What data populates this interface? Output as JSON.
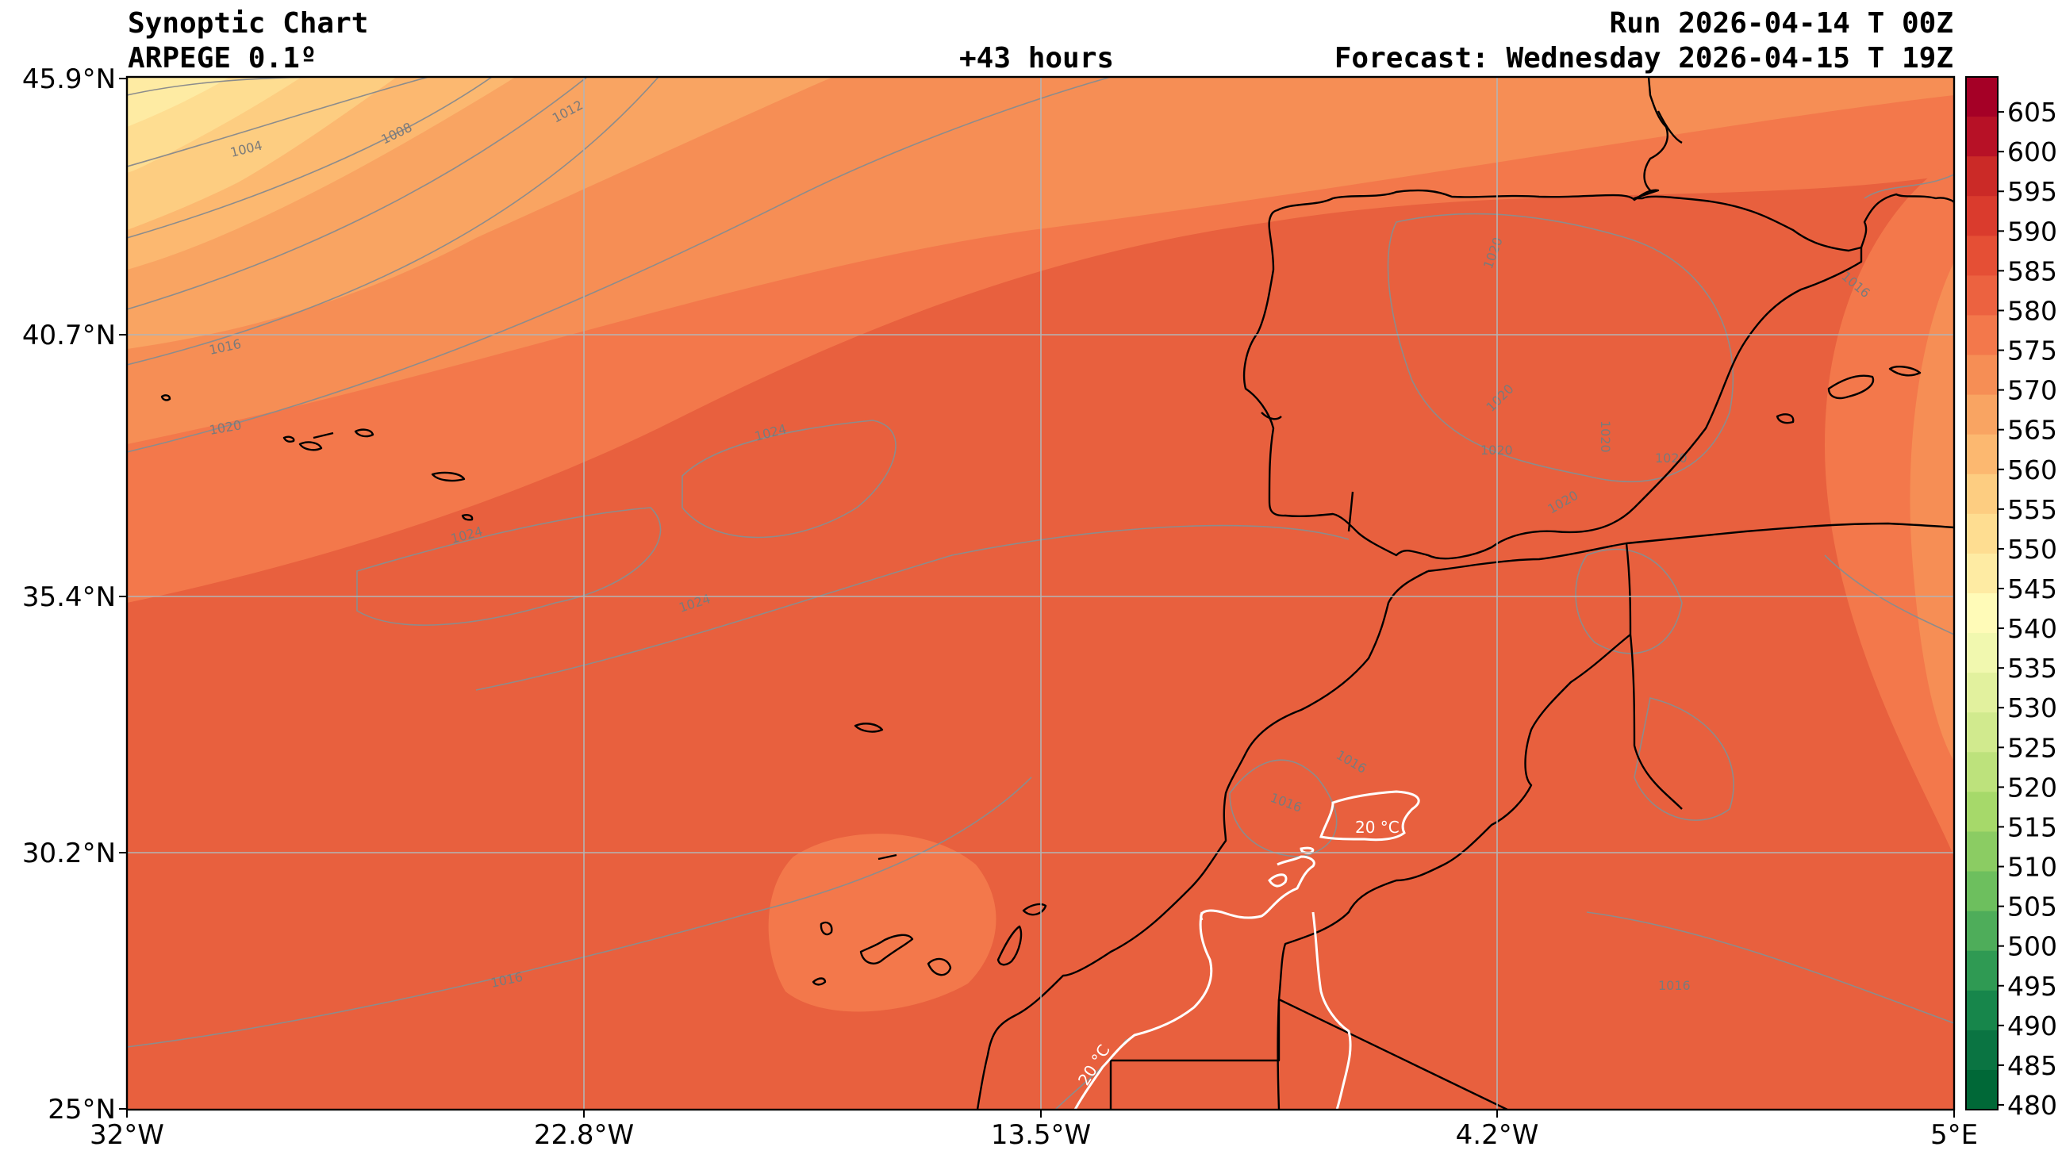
{
  "header": {
    "title": "Synoptic Chart",
    "model": "ARPEGE 0.1º",
    "lead_time": "+43 hours",
    "run": "Run 2026-04-14 T 00Z",
    "forecast": "Forecast: Wednesday 2026-04-15 T 19Z"
  },
  "map": {
    "lat_range": [
      25,
      45.9
    ],
    "lon_range": [
      -32,
      5
    ],
    "lat_ticks": [
      "45.9°N",
      "40.7°N",
      "35.4°N",
      "30.2°N",
      "25°N"
    ],
    "lon_ticks": [
      "32°W",
      "22.8°W",
      "13.5°W",
      "4.2°W",
      "5°E"
    ],
    "isobar_labels": [
      "1004",
      "1008",
      "1012",
      "1016",
      "1020",
      "1024",
      "1024",
      "1024",
      "1020",
      "1020",
      "1020",
      "1020",
      "1020",
      "1020",
      "1016",
      "1016",
      "1016",
      "1016",
      "1016"
    ],
    "temperature_labels": [
      "20 °C",
      "20 °C"
    ]
  },
  "colorbar": {
    "levels": [
      "605",
      "600",
      "595",
      "590",
      "585",
      "580",
      "575",
      "570",
      "565",
      "560",
      "555",
      "550",
      "545",
      "540",
      "535",
      "530",
      "525",
      "520",
      "515",
      "510",
      "505",
      "500",
      "495",
      "490",
      "485",
      "480"
    ],
    "colors": [
      "#a50026",
      "#b71126",
      "#cb2a27",
      "#da3b2d",
      "#e54f35",
      "#ec6240",
      "#f3784b",
      "#f68e55",
      "#f9a462",
      "#fcb870",
      "#fdcd81",
      "#fedd91",
      "#feeba3",
      "#fffbb8",
      "#f1f8af",
      "#e2f19e",
      "#d1ea8e",
      "#bde27c",
      "#a6d96a",
      "#8bcc63",
      "#6dbf5e",
      "#4ead5a",
      "#2f9a53",
      "#17864b",
      "#0a7442",
      "#006837"
    ]
  }
}
